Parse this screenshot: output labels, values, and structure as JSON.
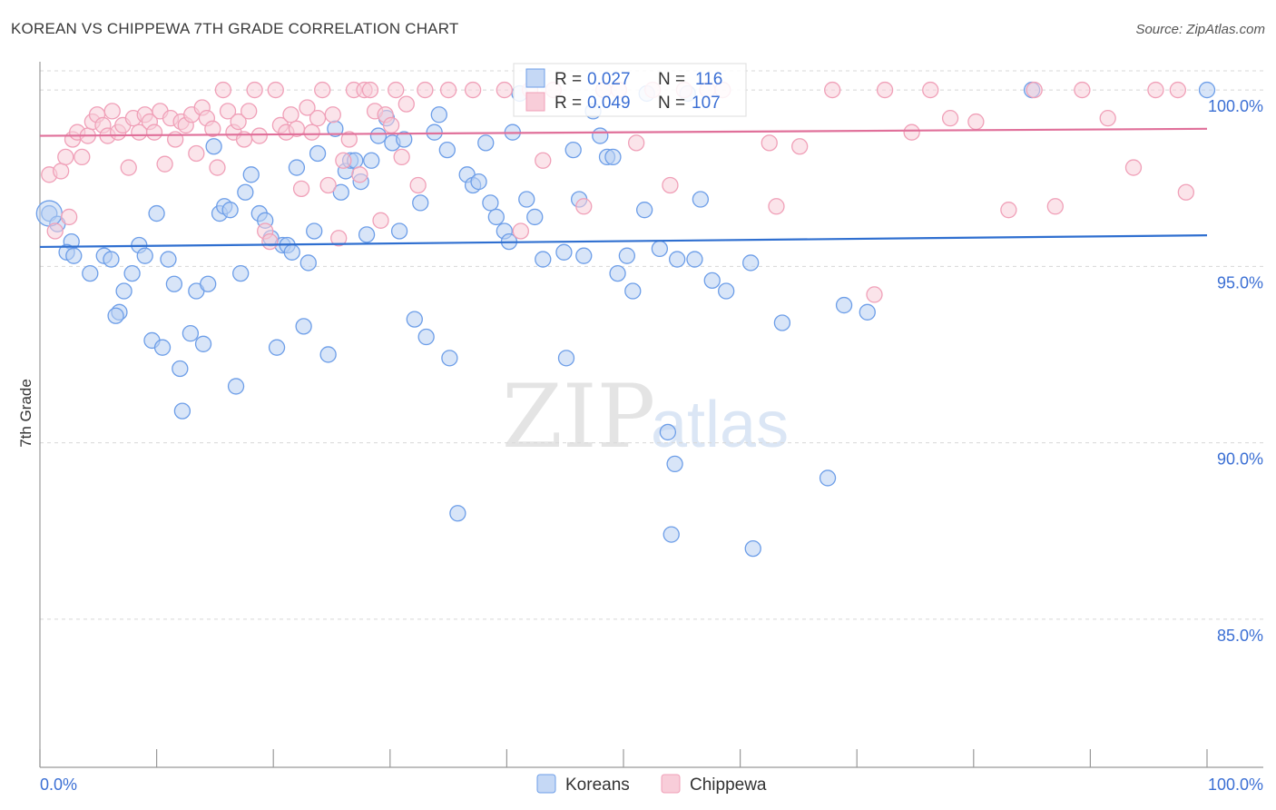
{
  "title": "KOREAN VS CHIPPEWA 7TH GRADE CORRELATION CHART",
  "source": "Source: ZipAtlas.com",
  "watermark": {
    "zip": "ZIP",
    "atlas": "atlas"
  },
  "colors": {
    "korean": "#6d9ee8",
    "korean_line": "#2f6fd0",
    "chippewa": "#f0a0b8",
    "chippewa_line": "#e0709a",
    "accent": "#3b6fd4"
  },
  "legend": {
    "korean": {
      "r_label": "R =",
      "r_value": "0.027",
      "n_label": "N =",
      "n_value": "116"
    },
    "chippewa": {
      "r_label": "R =",
      "r_value": "0.049",
      "n_label": "N =",
      "n_value": "107"
    }
  },
  "chart_data": {
    "type": "scatter",
    "title": "KOREAN VS CHIPPEWA 7TH GRADE CORRELATION CHART",
    "xlabel": "",
    "ylabel": "7th Grade",
    "xlim": [
      0,
      100
    ],
    "ylim": [
      80.8,
      100.8
    ],
    "x_tick_labels": [
      "0.0%",
      "100.0%"
    ],
    "y_ticks": [
      85,
      90,
      95,
      100
    ],
    "y_tick_labels": [
      "85.0%",
      "90.0%",
      "95.0%",
      "100.0%"
    ],
    "legend_entries": [
      "Koreans",
      "Chippewa"
    ],
    "series": [
      {
        "name": "Koreans",
        "trend": {
          "x": [
            0,
            100
          ],
          "y": [
            95.55,
            95.88
          ]
        },
        "points": [
          [
            0.8,
            96.5
          ],
          [
            1.5,
            96.2
          ],
          [
            2.7,
            95.7
          ],
          [
            2.3,
            95.4
          ],
          [
            2.9,
            95.3
          ],
          [
            4.3,
            94.8
          ],
          [
            5.5,
            95.3
          ],
          [
            6.1,
            95.2
          ],
          [
            6.8,
            93.7
          ],
          [
            7.2,
            94.3
          ],
          [
            6.5,
            93.6
          ],
          [
            7.9,
            94.8
          ],
          [
            8.5,
            95.6
          ],
          [
            9.0,
            95.3
          ],
          [
            9.6,
            92.9
          ],
          [
            10.0,
            96.5
          ],
          [
            10.5,
            92.7
          ],
          [
            11.0,
            95.2
          ],
          [
            11.5,
            94.5
          ],
          [
            12.0,
            92.1
          ],
          [
            12.2,
            90.9
          ],
          [
            12.9,
            93.1
          ],
          [
            13.4,
            94.3
          ],
          [
            14.0,
            92.8
          ],
          [
            14.4,
            94.5
          ],
          [
            14.9,
            98.4
          ],
          [
            15.4,
            96.5
          ],
          [
            15.8,
            96.7
          ],
          [
            16.3,
            96.6
          ],
          [
            16.8,
            91.6
          ],
          [
            17.2,
            94.8
          ],
          [
            17.6,
            97.1
          ],
          [
            18.1,
            97.6
          ],
          [
            18.8,
            96.5
          ],
          [
            19.3,
            96.3
          ],
          [
            19.8,
            95.8
          ],
          [
            20.3,
            92.7
          ],
          [
            20.8,
            95.6
          ],
          [
            21.2,
            95.6
          ],
          [
            21.6,
            95.4
          ],
          [
            22.0,
            97.8
          ],
          [
            22.6,
            93.3
          ],
          [
            23.0,
            95.1
          ],
          [
            23.5,
            96.0
          ],
          [
            23.8,
            98.2
          ],
          [
            24.7,
            92.5
          ],
          [
            25.3,
            98.9
          ],
          [
            25.8,
            97.1
          ],
          [
            26.2,
            97.7
          ],
          [
            26.6,
            98.0
          ],
          [
            27.0,
            98.0
          ],
          [
            27.5,
            97.4
          ],
          [
            28.0,
            95.9
          ],
          [
            28.4,
            98.0
          ],
          [
            29.0,
            98.7
          ],
          [
            29.7,
            99.2
          ],
          [
            30.2,
            98.5
          ],
          [
            30.8,
            96.0
          ],
          [
            31.2,
            98.6
          ],
          [
            32.1,
            93.5
          ],
          [
            32.6,
            96.8
          ],
          [
            33.1,
            93.0
          ],
          [
            33.8,
            98.8
          ],
          [
            34.2,
            99.3
          ],
          [
            34.9,
            98.3
          ],
          [
            35.1,
            92.4
          ],
          [
            35.8,
            88.0
          ],
          [
            36.6,
            97.6
          ],
          [
            37.1,
            97.3
          ],
          [
            37.6,
            97.4
          ],
          [
            38.2,
            98.5
          ],
          [
            38.6,
            96.8
          ],
          [
            39.1,
            96.4
          ],
          [
            39.8,
            96.0
          ],
          [
            40.2,
            95.7
          ],
          [
            40.5,
            98.8
          ],
          [
            41.1,
            99.9
          ],
          [
            41.7,
            96.9
          ],
          [
            42.4,
            96.4
          ],
          [
            43.1,
            95.2
          ],
          [
            44.9,
            95.4
          ],
          [
            45.1,
            92.4
          ],
          [
            45.7,
            98.3
          ],
          [
            46.2,
            96.9
          ],
          [
            46.6,
            95.3
          ],
          [
            47.4,
            99.4
          ],
          [
            48.0,
            98.7
          ],
          [
            48.6,
            98.1
          ],
          [
            49.1,
            98.1
          ],
          [
            49.5,
            94.8
          ],
          [
            50.3,
            95.3
          ],
          [
            50.8,
            94.3
          ],
          [
            51.8,
            96.6
          ],
          [
            52.0,
            99.9
          ],
          [
            53.1,
            95.5
          ],
          [
            53.8,
            90.3
          ],
          [
            54.1,
            87.4
          ],
          [
            54.4,
            89.4
          ],
          [
            54.6,
            95.2
          ],
          [
            55.5,
            99.9
          ],
          [
            56.1,
            95.2
          ],
          [
            56.6,
            96.9
          ],
          [
            57.6,
            94.6
          ],
          [
            58.8,
            94.3
          ],
          [
            60.9,
            95.1
          ],
          [
            61.1,
            87.0
          ],
          [
            63.6,
            93.4
          ],
          [
            67.5,
            89.0
          ],
          [
            68.9,
            93.9
          ],
          [
            70.9,
            93.7
          ],
          [
            85.0,
            100.0
          ],
          [
            100.0,
            100.0
          ]
        ]
      },
      {
        "name": "Chippewa",
        "trend": {
          "x": [
            0,
            100
          ],
          "y": [
            98.7,
            98.9
          ]
        },
        "points": [
          [
            0.8,
            97.6
          ],
          [
            1.3,
            96.0
          ],
          [
            1.8,
            97.7
          ],
          [
            2.2,
            98.1
          ],
          [
            2.5,
            96.4
          ],
          [
            2.8,
            98.6
          ],
          [
            3.2,
            98.8
          ],
          [
            3.6,
            98.1
          ],
          [
            4.1,
            98.7
          ],
          [
            4.5,
            99.1
          ],
          [
            4.9,
            99.3
          ],
          [
            5.4,
            99.0
          ],
          [
            5.8,
            98.7
          ],
          [
            6.2,
            99.4
          ],
          [
            6.7,
            98.8
          ],
          [
            7.1,
            99.0
          ],
          [
            7.6,
            97.8
          ],
          [
            8.0,
            99.2
          ],
          [
            8.5,
            98.8
          ],
          [
            9.0,
            99.3
          ],
          [
            9.4,
            99.1
          ],
          [
            9.8,
            98.8
          ],
          [
            10.3,
            99.4
          ],
          [
            10.7,
            97.9
          ],
          [
            11.2,
            99.2
          ],
          [
            11.6,
            98.6
          ],
          [
            12.1,
            99.1
          ],
          [
            12.5,
            99.0
          ],
          [
            13.0,
            99.3
          ],
          [
            13.4,
            98.2
          ],
          [
            13.9,
            99.5
          ],
          [
            14.3,
            99.2
          ],
          [
            14.8,
            98.9
          ],
          [
            15.2,
            97.8
          ],
          [
            15.7,
            100.0
          ],
          [
            16.1,
            99.4
          ],
          [
            16.6,
            98.8
          ],
          [
            17.0,
            99.1
          ],
          [
            17.5,
            98.6
          ],
          [
            17.9,
            99.4
          ],
          [
            18.4,
            100.0
          ],
          [
            18.8,
            98.7
          ],
          [
            19.3,
            96.0
          ],
          [
            19.7,
            95.7
          ],
          [
            20.2,
            100.0
          ],
          [
            20.6,
            99.0
          ],
          [
            21.1,
            98.8
          ],
          [
            21.5,
            99.3
          ],
          [
            22.0,
            98.9
          ],
          [
            22.4,
            97.2
          ],
          [
            22.9,
            99.5
          ],
          [
            23.3,
            98.8
          ],
          [
            23.8,
            99.2
          ],
          [
            24.2,
            100.0
          ],
          [
            24.7,
            97.3
          ],
          [
            25.1,
            99.3
          ],
          [
            25.6,
            95.8
          ],
          [
            26.0,
            98.0
          ],
          [
            26.5,
            98.6
          ],
          [
            26.9,
            100.0
          ],
          [
            27.4,
            97.6
          ],
          [
            27.8,
            100.0
          ],
          [
            28.3,
            100.0
          ],
          [
            28.7,
            99.4
          ],
          [
            29.2,
            96.3
          ],
          [
            29.6,
            99.3
          ],
          [
            30.1,
            99.0
          ],
          [
            30.5,
            100.0
          ],
          [
            31.0,
            98.1
          ],
          [
            31.4,
            99.6
          ],
          [
            32.4,
            97.3
          ],
          [
            33.0,
            100.0
          ],
          [
            35.0,
            100.0
          ],
          [
            37.1,
            100.0
          ],
          [
            39.8,
            100.0
          ],
          [
            41.2,
            96.0
          ],
          [
            42.0,
            100.0
          ],
          [
            43.1,
            98.0
          ],
          [
            44.0,
            100.0
          ],
          [
            46.6,
            96.7
          ],
          [
            48.3,
            100.0
          ],
          [
            49.6,
            100.0
          ],
          [
            51.1,
            98.5
          ],
          [
            52.5,
            100.0
          ],
          [
            54.0,
            97.3
          ],
          [
            55.2,
            100.0
          ],
          [
            57.2,
            100.0
          ],
          [
            58.5,
            100.0
          ],
          [
            62.5,
            98.5
          ],
          [
            63.1,
            96.7
          ],
          [
            65.1,
            98.4
          ],
          [
            67.9,
            100.0
          ],
          [
            71.5,
            94.2
          ],
          [
            72.4,
            100.0
          ],
          [
            74.7,
            98.8
          ],
          [
            76.3,
            100.0
          ],
          [
            78.0,
            99.2
          ],
          [
            80.2,
            99.1
          ],
          [
            83.0,
            96.6
          ],
          [
            85.2,
            100.0
          ],
          [
            87.0,
            96.7
          ],
          [
            89.3,
            100.0
          ],
          [
            91.5,
            99.2
          ],
          [
            93.7,
            97.8
          ],
          [
            95.6,
            100.0
          ],
          [
            97.5,
            100.0
          ],
          [
            98.2,
            97.1
          ]
        ]
      }
    ]
  }
}
